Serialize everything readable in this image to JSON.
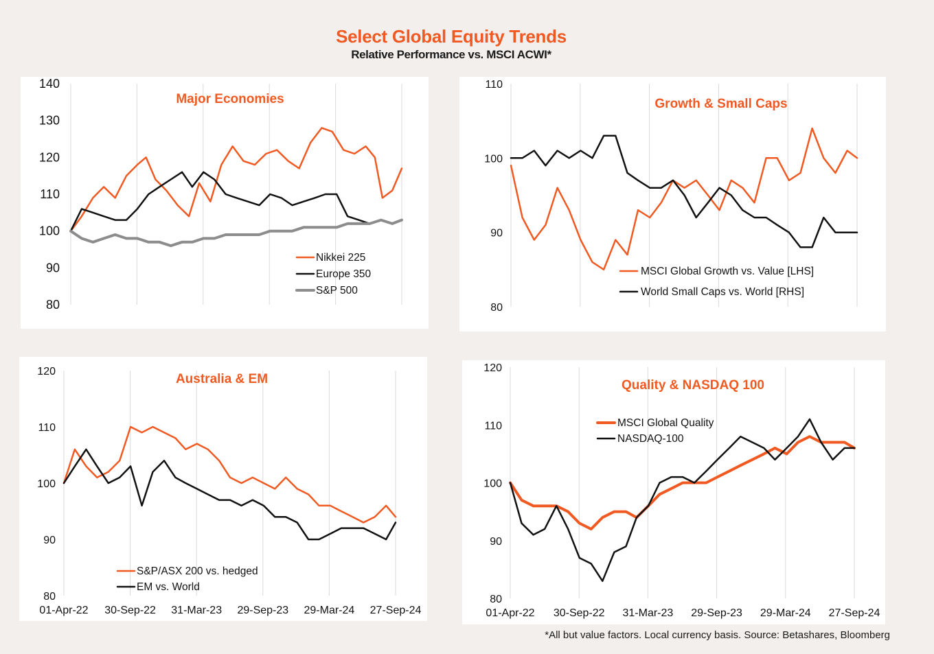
{
  "title": "Select Global Equity Trends",
  "subtitle": "Relative Performance vs. MSCI ACWI*",
  "footnote": "*All but value factors. Local currency basis.  Source: Betashares, Bloomberg",
  "colors": {
    "orange": "#f05a22",
    "black": "#111111",
    "grey": "#8c8c8c"
  },
  "chart_data": [
    {
      "type": "line",
      "title": "Major Economies",
      "ylim": [
        80,
        140
      ],
      "yticks": [
        80,
        90,
        100,
        110,
        120,
        130,
        140
      ],
      "xlim": [
        "2022-04-01",
        "2024-09-27"
      ],
      "xticks": [],
      "grid": "vertical",
      "legend": "bottom-right",
      "series": [
        {
          "name": "Nikkei 225",
          "color": "#f05a22",
          "width": 2.5,
          "x": [
            "2022-04-01",
            "2022-05-01",
            "2022-06-01",
            "2022-07-01",
            "2022-08-01",
            "2022-09-01",
            "2022-10-01",
            "2022-10-25",
            "2022-11-20",
            "2022-12-20",
            "2023-01-20",
            "2023-02-20",
            "2023-03-20",
            "2023-04-20",
            "2023-05-20",
            "2023-06-20",
            "2023-07-20",
            "2023-08-20",
            "2023-09-20",
            "2023-10-20",
            "2023-11-20",
            "2023-12-20",
            "2024-01-20",
            "2024-02-20",
            "2024-03-20",
            "2024-04-20",
            "2024-05-20",
            "2024-06-20",
            "2024-07-15",
            "2024-08-05",
            "2024-09-01",
            "2024-09-27"
          ],
          "values": [
            100,
            104,
            109,
            112,
            109,
            115,
            118,
            120,
            114,
            111,
            107,
            104,
            113,
            108,
            118,
            123,
            119,
            118,
            121,
            122,
            119,
            117,
            124,
            128,
            127,
            122,
            121,
            123,
            120,
            109,
            111,
            117
          ]
        },
        {
          "name": "Europe 350",
          "color": "#111111",
          "width": 2.5,
          "x": [
            "2022-04-01",
            "2022-05-01",
            "2022-06-01",
            "2022-07-01",
            "2022-08-01",
            "2022-09-01",
            "2022-10-01",
            "2022-11-01",
            "2022-12-01",
            "2023-01-01",
            "2023-02-01",
            "2023-03-01",
            "2023-04-01",
            "2023-05-01",
            "2023-06-01",
            "2023-07-01",
            "2023-08-01",
            "2023-09-01",
            "2023-10-01",
            "2023-11-01",
            "2023-12-01",
            "2024-01-01",
            "2024-02-01",
            "2024-03-01",
            "2024-04-01",
            "2024-05-01",
            "2024-06-01",
            "2024-07-01",
            "2024-08-01",
            "2024-09-01",
            "2024-09-27"
          ],
          "values": [
            100,
            106,
            105,
            104,
            103,
            103,
            106,
            110,
            112,
            114,
            116,
            112,
            116,
            114,
            110,
            109,
            108,
            107,
            110,
            109,
            107,
            108,
            109,
            110,
            110,
            104,
            103,
            102,
            103,
            102,
            103
          ]
        },
        {
          "name": "S&P 500",
          "color": "#8c8c8c",
          "width": 4,
          "x": [
            "2022-04-01",
            "2022-05-01",
            "2022-06-01",
            "2022-07-01",
            "2022-08-01",
            "2022-09-01",
            "2022-10-01",
            "2022-11-01",
            "2022-12-01",
            "2023-01-01",
            "2023-02-01",
            "2023-03-01",
            "2023-04-01",
            "2023-05-01",
            "2023-06-01",
            "2023-07-01",
            "2023-08-01",
            "2023-09-01",
            "2023-10-01",
            "2023-11-01",
            "2023-12-01",
            "2024-01-01",
            "2024-02-01",
            "2024-03-01",
            "2024-04-01",
            "2024-05-01",
            "2024-06-01",
            "2024-07-01",
            "2024-08-01",
            "2024-09-01",
            "2024-09-27"
          ],
          "values": [
            100,
            98,
            97,
            98,
            99,
            98,
            98,
            97,
            97,
            96,
            97,
            97,
            98,
            98,
            99,
            99,
            99,
            99,
            100,
            100,
            100,
            101,
            101,
            101,
            101,
            102,
            102,
            102,
            103,
            102,
            103
          ]
        }
      ]
    },
    {
      "type": "line",
      "title": "Growth & Small Caps",
      "ylim": [
        80,
        110
      ],
      "yticks": [
        80,
        90,
        100,
        110
      ],
      "xlim": [
        "2022-04-01",
        "2024-09-27"
      ],
      "xticks": [],
      "grid": "vertical",
      "legend": "bottom",
      "series": [
        {
          "name": "MSCI Global Growth vs. Value [LHS]",
          "color": "#f05a22",
          "width": 2.5,
          "x": [
            "2022-04-01",
            "2022-05-01",
            "2022-06-01",
            "2022-07-01",
            "2022-08-01",
            "2022-09-01",
            "2022-10-01",
            "2022-11-01",
            "2022-12-01",
            "2023-01-01",
            "2023-02-01",
            "2023-03-01",
            "2023-04-01",
            "2023-05-01",
            "2023-06-01",
            "2023-07-01",
            "2023-08-01",
            "2023-09-01",
            "2023-10-01",
            "2023-11-01",
            "2023-12-01",
            "2024-01-01",
            "2024-02-01",
            "2024-03-01",
            "2024-04-01",
            "2024-05-01",
            "2024-06-01",
            "2024-07-01",
            "2024-08-01",
            "2024-09-01",
            "2024-09-27"
          ],
          "values": [
            99,
            92,
            89,
            91,
            96,
            93,
            89,
            86,
            85,
            89,
            87,
            93,
            92,
            94,
            97,
            96,
            97,
            95,
            93,
            97,
            96,
            94,
            100,
            100,
            97,
            98,
            104,
            100,
            98,
            101,
            100
          ]
        },
        {
          "name": "World Small Caps vs. World [RHS]",
          "color": "#111111",
          "width": 2.5,
          "x": [
            "2022-04-01",
            "2022-05-01",
            "2022-06-01",
            "2022-07-01",
            "2022-08-01",
            "2022-09-01",
            "2022-10-01",
            "2022-11-01",
            "2022-12-01",
            "2023-01-01",
            "2023-02-01",
            "2023-03-01",
            "2023-04-01",
            "2023-05-01",
            "2023-06-01",
            "2023-07-01",
            "2023-08-01",
            "2023-09-01",
            "2023-10-01",
            "2023-11-01",
            "2023-12-01",
            "2024-01-01",
            "2024-02-01",
            "2024-03-01",
            "2024-04-01",
            "2024-05-01",
            "2024-06-01",
            "2024-07-01",
            "2024-08-01",
            "2024-09-01",
            "2024-09-27"
          ],
          "values": [
            100,
            100,
            101,
            99,
            101,
            100,
            101,
            100,
            103,
            103,
            98,
            97,
            96,
            96,
            97,
            95,
            92,
            94,
            96,
            95,
            93,
            92,
            92,
            91,
            90,
            88,
            88,
            92,
            90,
            90,
            90
          ]
        }
      ]
    },
    {
      "type": "line",
      "title": "Australia & EM",
      "ylim": [
        80,
        120
      ],
      "yticks": [
        80,
        90,
        100,
        110,
        120
      ],
      "xlim": [
        "2022-04-01",
        "2024-09-27"
      ],
      "xticks": [
        "01-Apr-22",
        "30-Sep-22",
        "31-Mar-23",
        "29-Sep-23",
        "29-Mar-24",
        "27-Sep-24"
      ],
      "grid": "vertical",
      "legend": "bottom-left",
      "series": [
        {
          "name": "S&P/ASX 200 vs. hedged",
          "color": "#f05a22",
          "width": 2.5,
          "x": [
            "2022-04-01",
            "2022-05-01",
            "2022-06-01",
            "2022-07-01",
            "2022-08-01",
            "2022-09-01",
            "2022-10-01",
            "2022-11-01",
            "2022-12-01",
            "2023-01-01",
            "2023-02-01",
            "2023-03-01",
            "2023-04-01",
            "2023-05-01",
            "2023-06-01",
            "2023-07-01",
            "2023-08-01",
            "2023-09-01",
            "2023-10-01",
            "2023-11-01",
            "2023-12-01",
            "2024-01-01",
            "2024-02-01",
            "2024-03-01",
            "2024-04-01",
            "2024-05-01",
            "2024-06-01",
            "2024-07-01",
            "2024-08-01",
            "2024-09-01",
            "2024-09-27"
          ],
          "values": [
            100,
            106,
            103,
            101,
            102,
            104,
            110,
            109,
            110,
            109,
            108,
            106,
            107,
            106,
            104,
            101,
            100,
            101,
            100,
            99,
            101,
            99,
            98,
            96,
            96,
            95,
            94,
            93,
            94,
            96,
            94
          ]
        },
        {
          "name": "EM vs. World",
          "color": "#111111",
          "width": 2.5,
          "x": [
            "2022-04-01",
            "2022-05-01",
            "2022-06-01",
            "2022-07-01",
            "2022-08-01",
            "2022-09-01",
            "2022-10-01",
            "2022-11-01",
            "2022-12-01",
            "2023-01-01",
            "2023-02-01",
            "2023-03-01",
            "2023-04-01",
            "2023-05-01",
            "2023-06-01",
            "2023-07-01",
            "2023-08-01",
            "2023-09-01",
            "2023-10-01",
            "2023-11-01",
            "2023-12-01",
            "2024-01-01",
            "2024-02-01",
            "2024-03-01",
            "2024-04-01",
            "2024-05-01",
            "2024-06-01",
            "2024-07-01",
            "2024-08-01",
            "2024-09-01",
            "2024-09-27"
          ],
          "values": [
            100,
            103,
            106,
            103,
            100,
            101,
            103,
            96,
            102,
            104,
            101,
            100,
            99,
            98,
            97,
            97,
            96,
            97,
            96,
            94,
            94,
            93,
            90,
            90,
            91,
            92,
            92,
            92,
            91,
            90,
            93
          ]
        }
      ]
    },
    {
      "type": "line",
      "title": "Quality & NASDAQ 100",
      "ylim": [
        80,
        120
      ],
      "yticks": [
        80,
        90,
        100,
        110,
        120
      ],
      "xlim": [
        "2022-04-01",
        "2024-09-27"
      ],
      "xticks": [
        "01-Apr-22",
        "30-Sep-22",
        "31-Mar-23",
        "29-Sep-23",
        "29-Mar-24",
        "27-Sep-24"
      ],
      "grid": "vertical",
      "legend": "top-left",
      "series": [
        {
          "name": "MSCI Global Quality",
          "color": "#f05a22",
          "width": 4,
          "x": [
            "2022-04-01",
            "2022-05-01",
            "2022-06-01",
            "2022-07-01",
            "2022-08-01",
            "2022-09-01",
            "2022-10-01",
            "2022-11-01",
            "2022-12-01",
            "2023-01-01",
            "2023-02-01",
            "2023-03-01",
            "2023-04-01",
            "2023-05-01",
            "2023-06-01",
            "2023-07-01",
            "2023-08-01",
            "2023-09-01",
            "2023-10-01",
            "2023-11-01",
            "2023-12-01",
            "2024-01-01",
            "2024-02-01",
            "2024-03-01",
            "2024-04-01",
            "2024-05-01",
            "2024-06-01",
            "2024-07-01",
            "2024-08-01",
            "2024-09-01",
            "2024-09-27"
          ],
          "values": [
            100,
            97,
            96,
            96,
            96,
            95,
            93,
            92,
            94,
            95,
            95,
            94,
            96,
            98,
            99,
            100,
            100,
            100,
            101,
            102,
            103,
            104,
            105,
            106,
            105,
            107,
            108,
            107,
            107,
            107,
            106
          ]
        },
        {
          "name": "NASDAQ-100",
          "color": "#111111",
          "width": 2.5,
          "x": [
            "2022-04-01",
            "2022-05-01",
            "2022-06-01",
            "2022-07-01",
            "2022-08-01",
            "2022-09-01",
            "2022-10-01",
            "2022-11-01",
            "2022-12-01",
            "2023-01-01",
            "2023-02-01",
            "2023-03-01",
            "2023-04-01",
            "2023-05-01",
            "2023-06-01",
            "2023-07-01",
            "2023-08-01",
            "2023-09-01",
            "2023-10-01",
            "2023-11-01",
            "2023-12-01",
            "2024-01-01",
            "2024-02-01",
            "2024-03-01",
            "2024-04-01",
            "2024-05-01",
            "2024-06-01",
            "2024-07-01",
            "2024-08-01",
            "2024-09-01",
            "2024-09-27"
          ],
          "values": [
            100,
            93,
            91,
            92,
            96,
            92,
            87,
            86,
            83,
            88,
            89,
            94,
            96,
            100,
            101,
            101,
            100,
            102,
            104,
            106,
            108,
            107,
            106,
            104,
            106,
            108,
            111,
            107,
            104,
            106,
            106
          ]
        }
      ]
    }
  ]
}
